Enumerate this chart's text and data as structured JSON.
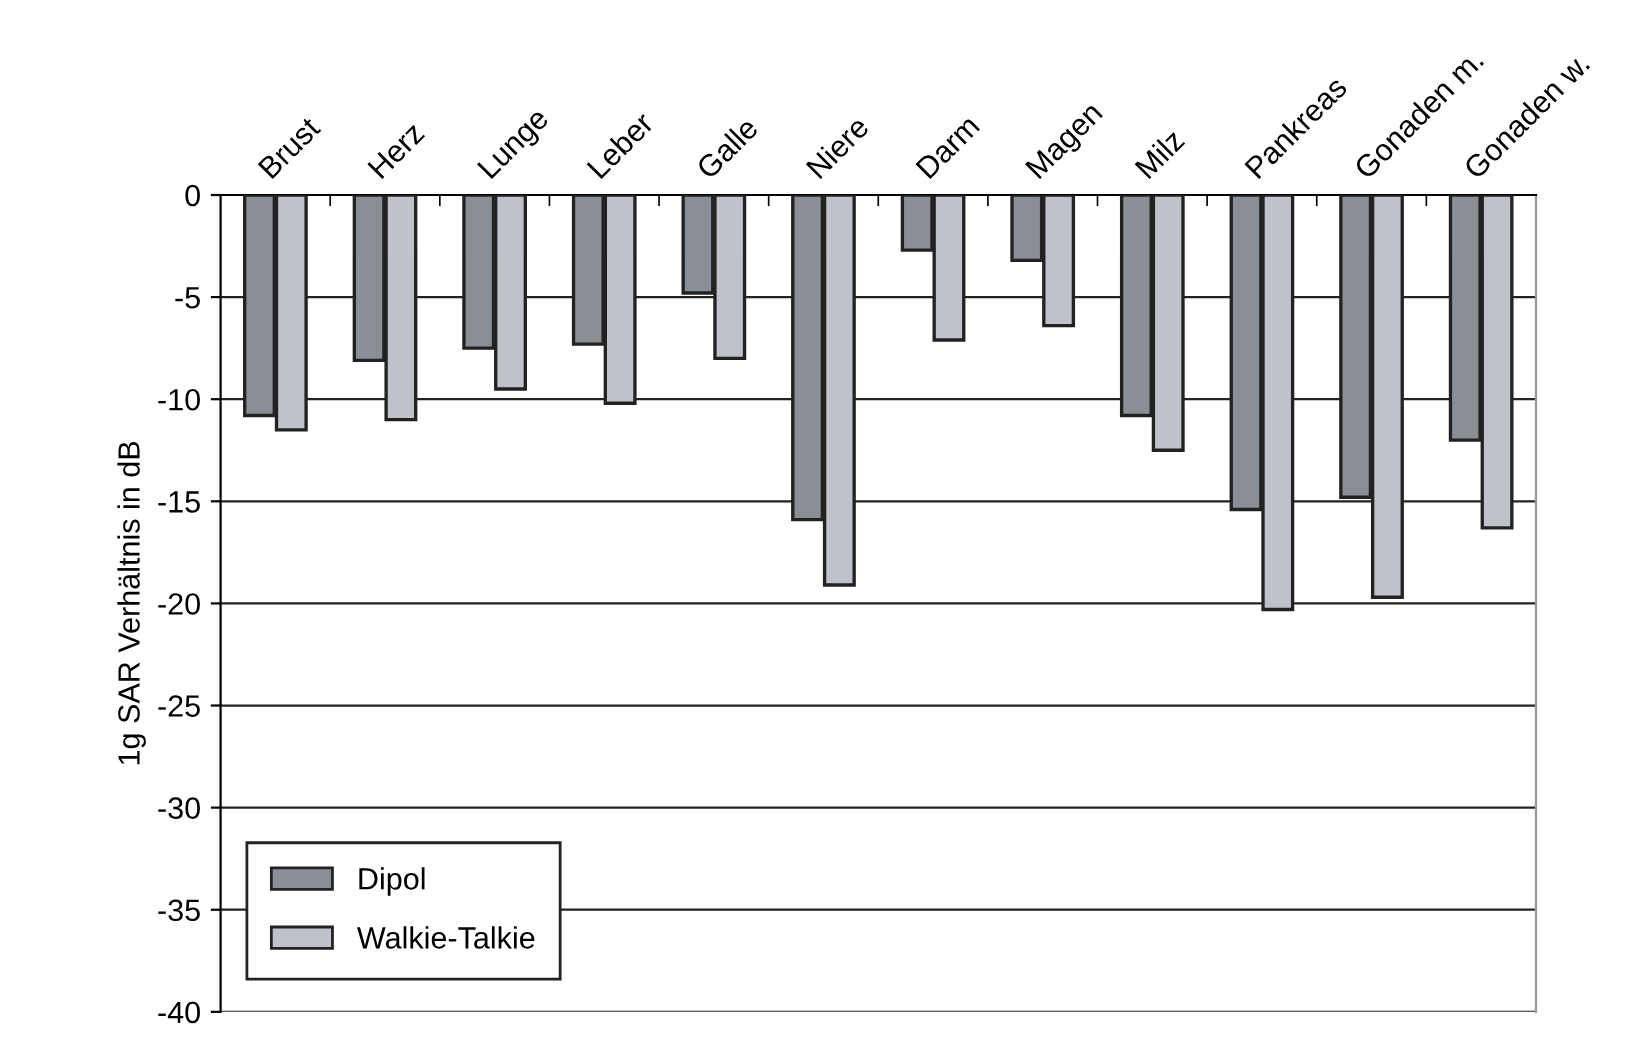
{
  "chart_data": {
    "type": "bar",
    "ylabel": "1g SAR Verhältnis in dB",
    "categories": [
      "Brust",
      "Herz",
      "Lunge",
      "Leber",
      "Galle",
      "Niere",
      "Darm",
      "Magen",
      "Milz",
      "Pankreas",
      "Gonaden m.",
      "Gonaden w."
    ],
    "series": [
      {
        "name": "Dipol",
        "color": "#8a8f96",
        "values": [
          -10.8,
          -8.1,
          -7.5,
          -7.3,
          -4.8,
          -15.9,
          -2.7,
          -3.2,
          -10.8,
          -15.4,
          -14.8,
          -12.0
        ]
      },
      {
        "name": "Walkie-Talkie",
        "color": "#bfc3c9",
        "values": [
          -11.5,
          -11.0,
          -9.5,
          -10.2,
          -8.0,
          -19.1,
          -7.1,
          -6.4,
          -12.5,
          -20.3,
          -19.7,
          -16.3
        ]
      }
    ],
    "ylim": [
      -40,
      0
    ],
    "yticks": [
      -40,
      -35,
      -30,
      -25,
      -20,
      -15,
      -10,
      -5,
      0
    ],
    "grid": "y",
    "legend": "bottom left"
  }
}
